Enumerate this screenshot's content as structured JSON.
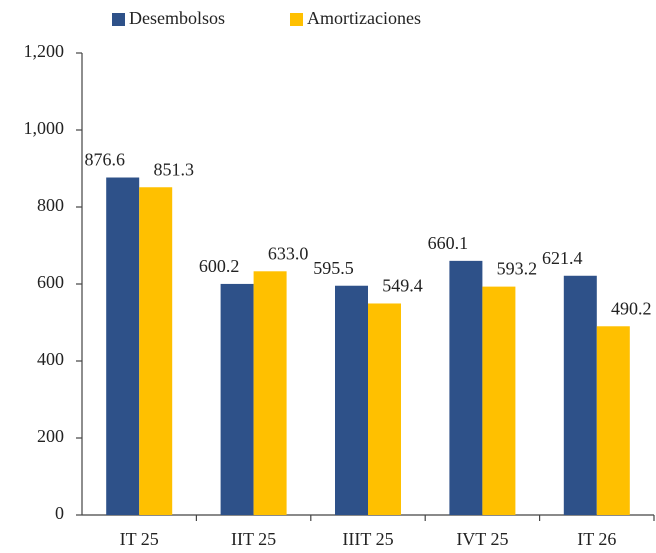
{
  "chart_data": {
    "type": "bar",
    "categories": [
      "IT 25",
      "IIT 25",
      "IIIT 25",
      "IVT 25",
      "IT 26"
    ],
    "series": [
      {
        "name": "Desembolsos",
        "color": "#2e5189",
        "values": [
          876.6,
          600.2,
          595.5,
          660.1,
          621.4
        ],
        "value_labels": [
          "876.6",
          "600.2",
          "595.5",
          "660.1",
          "621.4"
        ]
      },
      {
        "name": "Amortizaciones",
        "color": "#ffc000",
        "values": [
          851.3,
          633.0,
          549.4,
          593.2,
          490.2
        ],
        "value_labels": [
          "851.3",
          "633.0",
          "549.4",
          "593.2",
          "490.2"
        ]
      }
    ],
    "ylim": [
      0,
      1200
    ],
    "yticks": [
      0,
      200,
      400,
      600,
      800,
      {
        "value": 1000,
        "label": "1,000"
      },
      {
        "value": 1200,
        "label": "1,200"
      }
    ],
    "legend": "top"
  }
}
